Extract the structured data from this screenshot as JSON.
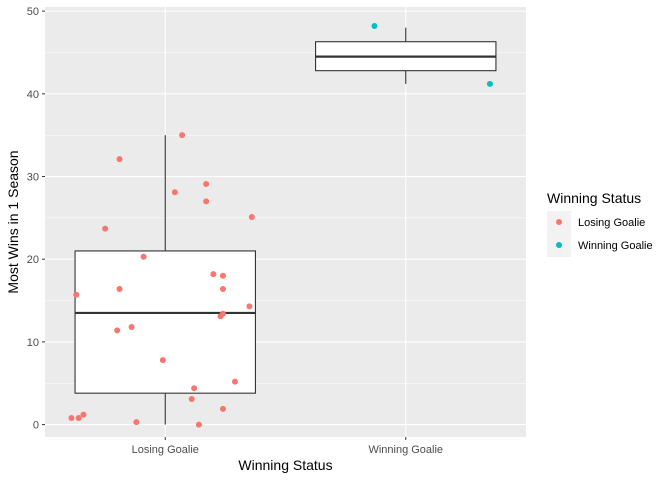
{
  "chart_data": {
    "type": "boxplot",
    "xlabel": "Winning Status",
    "ylabel": "Most Wins in 1 Season",
    "categories": [
      "Losing Goalie",
      "Winning Goalie"
    ],
    "ylim": [
      -1.5,
      50.5
    ],
    "yticks": [
      0,
      10,
      20,
      30,
      40,
      50
    ],
    "grid": true,
    "legend": {
      "title": "Winning Status",
      "position": "right",
      "entries": [
        {
          "label": "Losing Goalie",
          "color": "#F8766D"
        },
        {
          "label": "Winning Goalie",
          "color": "#00BFC4"
        }
      ]
    },
    "boxes": [
      {
        "category": "Losing Goalie",
        "whisker_low": 0,
        "q1": 3.8,
        "median": 13.5,
        "q3": 21,
        "whisker_high": 35
      },
      {
        "category": "Winning Goalie",
        "whisker_low": 41.2,
        "q1": 42.8,
        "median": 44.5,
        "q3": 46.3,
        "whisker_high": 48
      }
    ],
    "points": [
      {
        "category": "Losing Goalie",
        "jitter": 0.07,
        "y": 35
      },
      {
        "category": "Losing Goalie",
        "jitter": -0.19,
        "y": 32.1
      },
      {
        "category": "Losing Goalie",
        "jitter": 0.17,
        "y": 29.1
      },
      {
        "category": "Losing Goalie",
        "jitter": 0.04,
        "y": 28.1
      },
      {
        "category": "Losing Goalie",
        "jitter": 0.17,
        "y": 27
      },
      {
        "category": "Losing Goalie",
        "jitter": 0.36,
        "y": 25.1
      },
      {
        "category": "Losing Goalie",
        "jitter": -0.25,
        "y": 23.7
      },
      {
        "category": "Losing Goalie",
        "jitter": -0.09,
        "y": 20.3
      },
      {
        "category": "Losing Goalie",
        "jitter": 0.2,
        "y": 18.2
      },
      {
        "category": "Losing Goalie",
        "jitter": 0.24,
        "y": 18
      },
      {
        "category": "Losing Goalie",
        "jitter": -0.19,
        "y": 16.4
      },
      {
        "category": "Losing Goalie",
        "jitter": 0.24,
        "y": 16.4
      },
      {
        "category": "Losing Goalie",
        "jitter": -0.37,
        "y": 15.7
      },
      {
        "category": "Losing Goalie",
        "jitter": 0.35,
        "y": 14.3
      },
      {
        "category": "Losing Goalie",
        "jitter": 0.24,
        "y": 13.4
      },
      {
        "category": "Losing Goalie",
        "jitter": 0.23,
        "y": 13.1
      },
      {
        "category": "Losing Goalie",
        "jitter": -0.14,
        "y": 11.8
      },
      {
        "category": "Losing Goalie",
        "jitter": -0.2,
        "y": 11.4
      },
      {
        "category": "Losing Goalie",
        "jitter": -0.01,
        "y": 7.8
      },
      {
        "category": "Losing Goalie",
        "jitter": 0.29,
        "y": 5.2
      },
      {
        "category": "Losing Goalie",
        "jitter": 0.12,
        "y": 4.4
      },
      {
        "category": "Losing Goalie",
        "jitter": 0.11,
        "y": 3.1
      },
      {
        "category": "Losing Goalie",
        "jitter": 0.24,
        "y": 1.9
      },
      {
        "category": "Losing Goalie",
        "jitter": -0.34,
        "y": 1.2
      },
      {
        "category": "Losing Goalie",
        "jitter": -0.36,
        "y": 0.8
      },
      {
        "category": "Losing Goalie",
        "jitter": -0.39,
        "y": 0.8
      },
      {
        "category": "Losing Goalie",
        "jitter": -0.12,
        "y": 0.3
      },
      {
        "category": "Losing Goalie",
        "jitter": 0.14,
        "y": 0
      },
      {
        "category": "Winning Goalie",
        "jitter": -0.13,
        "y": 48.2
      },
      {
        "category": "Winning Goalie",
        "jitter": 0.35,
        "y": 41.2
      }
    ]
  }
}
